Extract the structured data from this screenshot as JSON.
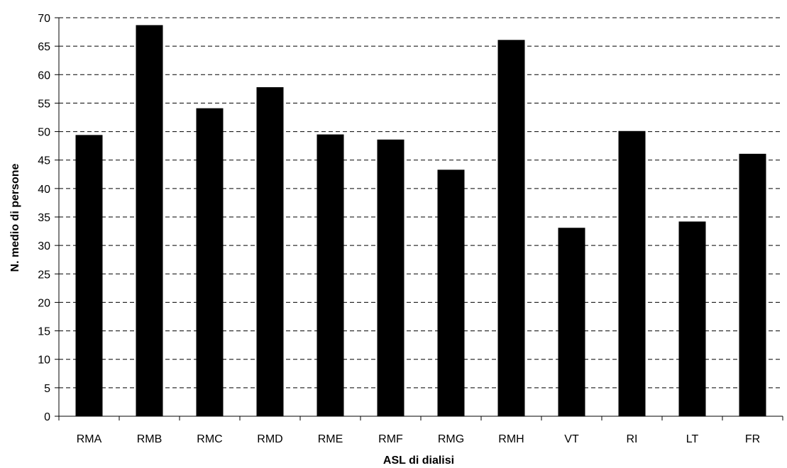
{
  "chart_data": {
    "type": "bar",
    "title": "",
    "xlabel": "ASL di dialisi",
    "ylabel": "N. medio di persone",
    "categories": [
      "RMA",
      "RMB",
      "RMC",
      "RMD",
      "RME",
      "RMF",
      "RMG",
      "RMH",
      "VT",
      "RI",
      "LT",
      "FR"
    ],
    "values": [
      49.4,
      68.7,
      54.1,
      57.8,
      49.5,
      48.6,
      43.3,
      66.1,
      33.1,
      50.1,
      34.2,
      46.1
    ],
    "ylim": [
      0,
      70
    ],
    "yticks": [
      0,
      5,
      10,
      15,
      20,
      25,
      30,
      35,
      40,
      45,
      50,
      55,
      60,
      65,
      70
    ],
    "grid": true,
    "grid_style": "dashed",
    "legend": "none",
    "colors": {
      "bar": "#000000",
      "grid": "#000000",
      "axis": "#000000"
    }
  }
}
